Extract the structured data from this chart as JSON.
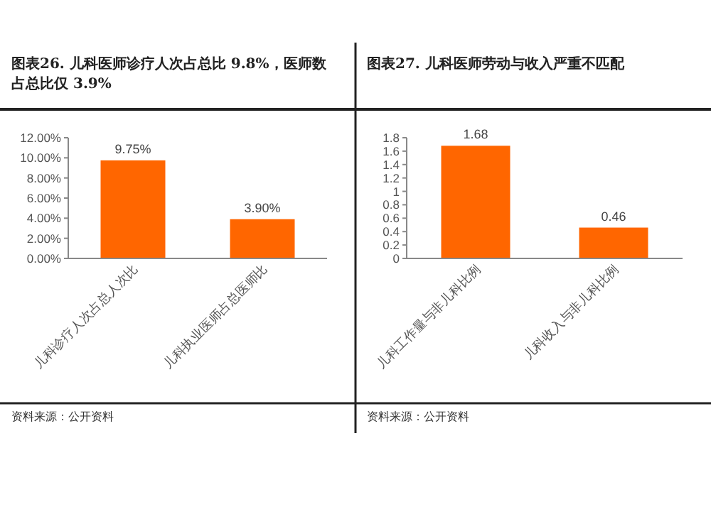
{
  "chart_data": [
    {
      "type": "bar",
      "title": "图表26.  儿科医师诊疗人次占总比 9.8%，医师数占总比仅 3.9%",
      "categories": [
        "儿科诊疗人次占总人次比",
        "儿科执业医师占总医师比"
      ],
      "values": [
        9.75,
        3.9
      ],
      "colors": [
        "#ff6600",
        "#ff6600"
      ],
      "value_labels": [
        "9.75%",
        "3.90%"
      ],
      "ylim": [
        0,
        12
      ],
      "yticks": [
        {
          "value": 0,
          "label": "0.00%"
        },
        {
          "value": 2,
          "label": "2.00%"
        },
        {
          "value": 4,
          "label": "4.00%"
        },
        {
          "value": 6,
          "label": "6.00%"
        },
        {
          "value": 8,
          "label": "8.00%"
        },
        {
          "value": 10,
          "label": "10.00%"
        },
        {
          "value": 12,
          "label": "12.00%"
        }
      ],
      "grid": false,
      "annotations": [
        "资料来源：公开资料"
      ]
    },
    {
      "type": "bar",
      "title": "图表27.  儿科医师劳动与收入严重不匹配",
      "categories": [
        "儿科工作量与非儿科比例",
        "儿科收入与非儿科比例"
      ],
      "values": [
        1.68,
        0.46
      ],
      "colors": [
        "#ff6600",
        "#ff6600"
      ],
      "value_labels": [
        "1.68",
        "0.46"
      ],
      "ylim": [
        0,
        1.8
      ],
      "yticks": [
        0,
        0.2,
        0.4,
        0.6,
        0.8,
        1,
        1.2,
        1.4,
        1.6,
        1.8
      ],
      "grid": false,
      "annotations": [
        "资料来源：公开资料"
      ]
    }
  ]
}
